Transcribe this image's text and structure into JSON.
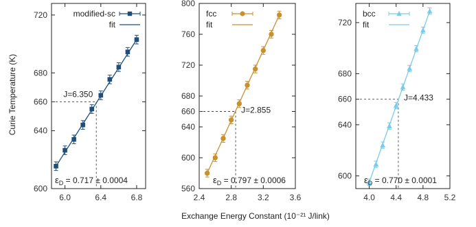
{
  "figure": {
    "xlabel": "Exchange Energy Constant (10⁻²¹ J/link)",
    "ylabel": "Curie Temperature (K)"
  },
  "chart_data": [
    {
      "type": "scatter",
      "id": "sc",
      "color": "#1f4e79",
      "marker": "square",
      "xlim": [
        5.85,
        6.9
      ],
      "ylim": [
        600,
        728
      ],
      "xticks": [
        6.0,
        6.4,
        6.8
      ],
      "xtick_labels": [
        "6.0",
        "6.4",
        "6.8"
      ],
      "yticks": [
        600,
        640,
        660,
        680,
        720
      ],
      "ytick_labels": [
        "600",
        "640",
        "660",
        "680",
        "720"
      ],
      "series": [
        {
          "name": "modified-sc",
          "x": [
            5.9,
            6.0,
            6.1,
            6.2,
            6.3,
            6.4,
            6.5,
            6.6,
            6.7,
            6.8
          ],
          "y": [
            615.5,
            626.5,
            634.0,
            644.0,
            655.0,
            664.5,
            675.5,
            684.0,
            694.5,
            703.0
          ],
          "yerr": [
            3.0,
            3.0,
            3.0,
            3.0,
            3.0,
            3.0,
            3.0,
            3.0,
            3.0,
            3.0
          ]
        },
        {
          "name": "fit",
          "x": [
            5.9,
            6.8
          ],
          "y": [
            615.5,
            703.0
          ]
        }
      ],
      "guide": {
        "x": 6.35,
        "y": 660,
        "label": "J=6.350"
      },
      "epsilon": "εD = 0.717 ± 0.0004",
      "epsilon_symbol": "ε",
      "epsilon_sub": "D",
      "epsilon_value": " = 0.717 ± 0.0004",
      "legend_position": "top-right"
    },
    {
      "type": "scatter",
      "id": "fcc",
      "color": "#c8912f",
      "marker": "circle",
      "xlim": [
        2.4,
        3.6
      ],
      "ylim": [
        560,
        800
      ],
      "xticks": [
        2.4,
        2.8,
        3.2,
        3.6
      ],
      "xtick_labels": [
        "2.4",
        "2.8",
        "3.2",
        "3.6"
      ],
      "yticks": [
        560,
        600,
        640,
        660,
        680,
        720,
        760,
        800
      ],
      "ytick_labels": [
        "560",
        "600",
        "640",
        "660",
        "680",
        "720",
        "760",
        "800"
      ],
      "series": [
        {
          "name": "fcc",
          "x": [
            2.5,
            2.6,
            2.7,
            2.8,
            2.9,
            3.0,
            3.1,
            3.2,
            3.3,
            3.4
          ],
          "y": [
            580.0,
            600.0,
            625.0,
            649.0,
            670.0,
            694.0,
            715.0,
            739.0,
            760.0,
            785.0
          ],
          "yerr": [
            5.0,
            5.0,
            5.0,
            5.0,
            5.0,
            5.0,
            5.0,
            5.0,
            5.0,
            5.0
          ]
        },
        {
          "name": "fit",
          "x": [
            2.5,
            3.4
          ],
          "y": [
            580.0,
            785.0
          ]
        }
      ],
      "guide": {
        "x": 2.855,
        "y": 660,
        "label": "J=2.855"
      },
      "epsilon": "εD = 0.797 ± 0.0006",
      "epsilon_symbol": "ε",
      "epsilon_sub": "D",
      "epsilon_value": " = 0.797 ± 0.0006",
      "legend_position": "top-left"
    },
    {
      "type": "scatter",
      "id": "bcc",
      "color": "#7ccbe8",
      "marker": "triangle",
      "xlim": [
        3.8,
        5.2
      ],
      "ylim": [
        590,
        735
      ],
      "xticks": [
        4.0,
        4.4,
        4.8,
        5.2
      ],
      "xtick_labels": [
        "4.0",
        "4.4",
        "4.8",
        "5.2"
      ],
      "yticks": [
        600,
        640,
        660,
        680,
        720
      ],
      "ytick_labels": [
        "600",
        "640",
        "660",
        "680",
        "720"
      ],
      "series": [
        {
          "name": "bcc",
          "x": [
            4.0,
            4.1,
            4.2,
            4.3,
            4.4,
            4.5,
            4.6,
            4.7,
            4.8,
            4.9
          ],
          "y": [
            595.0,
            609.0,
            624.0,
            639.0,
            655.0,
            669.5,
            684.0,
            699.5,
            714.0,
            729.0
          ],
          "yerr": [
            2.5,
            2.5,
            2.5,
            2.5,
            2.5,
            2.5,
            2.5,
            2.5,
            2.5,
            2.5
          ]
        },
        {
          "name": "fit",
          "x": [
            4.0,
            4.9
          ],
          "y": [
            595.0,
            729.0
          ]
        }
      ],
      "guide": {
        "x": 4.433,
        "y": 660,
        "label": "J=4.433"
      },
      "epsilon": "εD = 0.770 ± 0.0001",
      "epsilon_symbol": "ε",
      "epsilon_sub": "D",
      "epsilon_value": " = 0.770 ± 0.0001",
      "legend_position": "top-left"
    }
  ]
}
